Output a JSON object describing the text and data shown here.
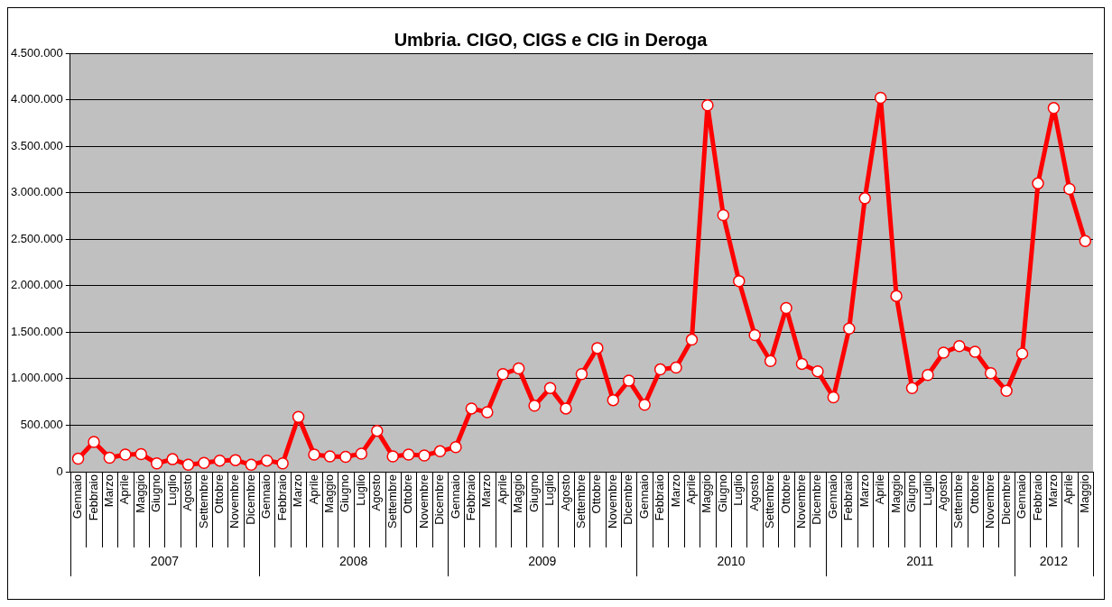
{
  "chart_data": {
    "type": "line",
    "title": "Umbria. CIGO, CIGS e CIG in Deroga",
    "categories": [
      "Gennaio",
      "Febbraio",
      "Marzo",
      "Aprile",
      "Maggio",
      "Giugno",
      "Luglio",
      "Agosto",
      "Settembre",
      "Ottobre",
      "Novembre",
      "Dicembre",
      "Gennaio",
      "Febbraio",
      "Marzo",
      "Aprile",
      "Maggio",
      "Giugno",
      "Luglio",
      "Agosto",
      "Settembre",
      "Ottobre",
      "Novembre",
      "Dicembre",
      "Gennaio",
      "Febbraio",
      "Marzo",
      "Aprile",
      "Maggio",
      "Giugno",
      "Luglio",
      "Agosto",
      "Settembre",
      "Ottobre",
      "Novembre",
      "Dicembre",
      "Gennaio",
      "Febbraio",
      "Marzo",
      "Aprile",
      "Maggio",
      "Giugno",
      "Luglio",
      "Agosto",
      "Settembre",
      "Ottobre",
      "Novembre",
      "Dicembre",
      "Gennaio",
      "Febbraio",
      "Marzo",
      "Aprile",
      "Maggio",
      "Giugno",
      "Luglio",
      "Agosto",
      "Settembre",
      "Ottobre",
      "Novembre",
      "Dicembre",
      "Gennaio",
      "Febbraio",
      "Marzo",
      "Aprile",
      "Maggio"
    ],
    "series": [
      {
        "color": "#ff0000",
        "values": [
          140000,
          320000,
          150000,
          185000,
          190000,
          90000,
          135000,
          75000,
          95000,
          120000,
          125000,
          75000,
          120000,
          90000,
          590000,
          185000,
          165000,
          160000,
          195000,
          440000,
          165000,
          185000,
          175000,
          220000,
          265000,
          680000,
          640000,
          1050000,
          1110000,
          710000,
          900000,
          680000,
          1050000,
          1330000,
          770000,
          980000,
          720000,
          1100000,
          1120000,
          1420000,
          3940000,
          2760000,
          2050000,
          1470000,
          1190000,
          1760000,
          1160000,
          1080000,
          800000,
          1540000,
          2940000,
          4020000,
          1890000,
          900000,
          1040000,
          1280000,
          1350000,
          1290000,
          1060000,
          870000,
          1270000,
          3100000,
          3910000,
          3040000,
          2480000
        ]
      }
    ],
    "annotations": [
      "2007",
      "2008",
      "2009",
      "2010",
      "2011",
      "2012"
    ],
    "ylim": [
      0,
      4500000
    ],
    "yticks": [
      0,
      {
        "value": 500000,
        "label": "500.000"
      },
      {
        "value": 1000000,
        "label": "1.000.000"
      },
      {
        "value": 1500000,
        "label": "1.500.000"
      },
      {
        "value": 2000000,
        "label": "2.000.000"
      },
      {
        "value": 2500000,
        "label": "2.500.000"
      },
      {
        "value": 3000000,
        "label": "3.000.000"
      },
      {
        "value": 3500000,
        "label": "3.500.000"
      },
      {
        "value": 4000000,
        "label": "4.000.000"
      },
      {
        "value": 4500000,
        "label": "4.500.000"
      }
    ],
    "grid": "y",
    "legend": false,
    "marker": "circle",
    "line_style": "solid"
  }
}
